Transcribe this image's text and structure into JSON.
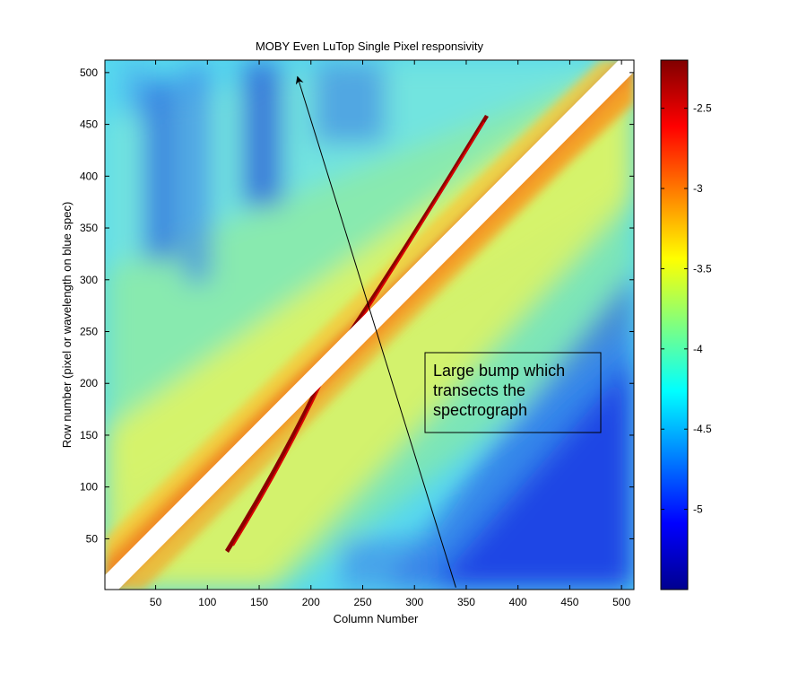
{
  "chart_data": {
    "type": "heatmap",
    "title": "MOBY Even LuTop Single Pixel responsivity",
    "xlabel": "Column Number",
    "ylabel": "Row number (pixel or wavelength on blue spec)",
    "xlim": [
      1,
      512
    ],
    "ylim": [
      1,
      512
    ],
    "xticks": [
      50,
      100,
      150,
      200,
      250,
      300,
      350,
      400,
      450,
      500
    ],
    "yticks": [
      50,
      100,
      150,
      200,
      250,
      300,
      350,
      400,
      450,
      500
    ],
    "colorbar": {
      "colormap": "jet",
      "range": [
        -5.5,
        -2.2
      ],
      "ticks": [
        -2.5,
        -3,
        -3.5,
        -4,
        -4.5,
        -5
      ],
      "tick_labels": [
        "-2.5",
        "-3",
        "-3.5",
        "-4",
        "-4.5",
        "-5"
      ]
    },
    "annotations": [
      {
        "text_lines": [
          "Large bump which",
          "transects the",
          "spectrograph"
        ],
        "arrow_from": [
          340,
          3
        ],
        "arrow_to": [
          187,
          496
        ]
      }
    ]
  }
}
